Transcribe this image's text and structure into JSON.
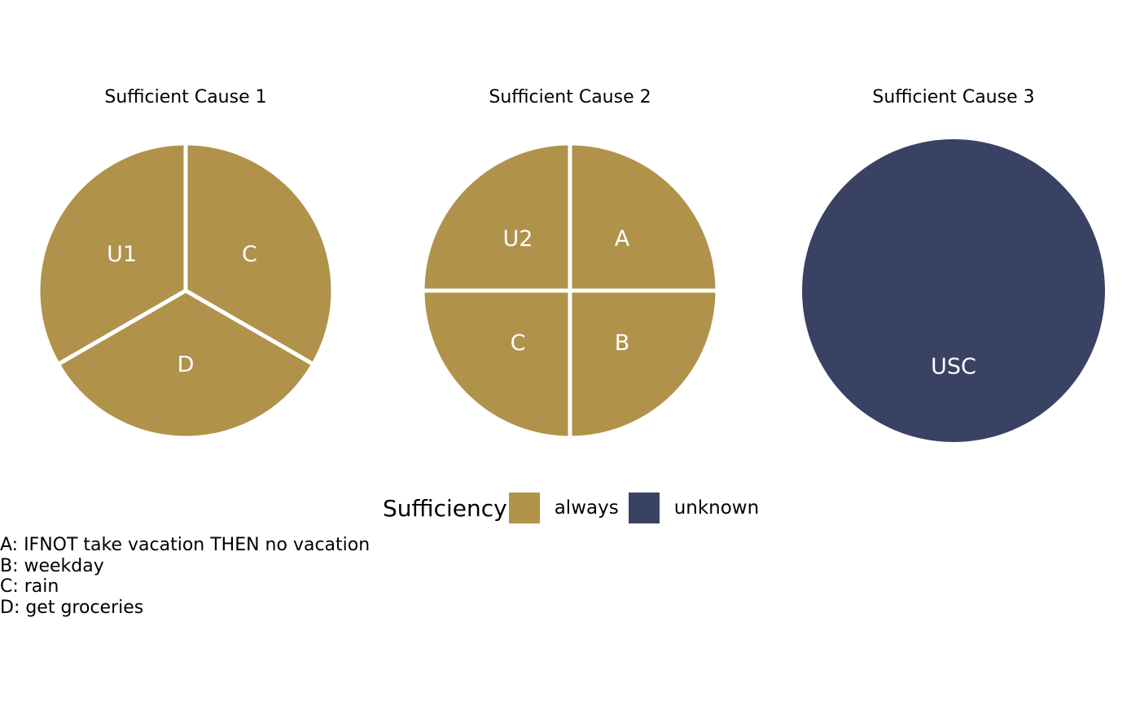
{
  "chart_data": {
    "type": "pie",
    "panels": [
      {
        "title": "Sufficient Cause 1",
        "slices": [
          {
            "label": "C",
            "value": 1,
            "sufficiency": "always"
          },
          {
            "label": "D",
            "value": 1,
            "sufficiency": "always"
          },
          {
            "label": "U1",
            "value": 1,
            "sufficiency": "always"
          }
        ]
      },
      {
        "title": "Sufficient Cause 2",
        "slices": [
          {
            "label": "A",
            "value": 1,
            "sufficiency": "always"
          },
          {
            "label": "B",
            "value": 1,
            "sufficiency": "always"
          },
          {
            "label": "C",
            "value": 1,
            "sufficiency": "always"
          },
          {
            "label": "U2",
            "value": 1,
            "sufficiency": "always"
          }
        ]
      },
      {
        "title": "Sufficient Cause 3",
        "slices": [
          {
            "label": "USC",
            "value": 1,
            "sufficiency": "unknown"
          }
        ]
      }
    ],
    "legend": {
      "title": "Sufficiency",
      "placement": "bottom",
      "entries": [
        {
          "key": "always",
          "label": "always",
          "color": "#B0924A"
        },
        {
          "key": "unknown",
          "label": "unknown",
          "color": "#394263"
        }
      ]
    },
    "caption_lines": [
      "A: IFNOT take vacation THEN no vacation",
      "B: weekday",
      "C: rain",
      "D: get groceries"
    ]
  }
}
